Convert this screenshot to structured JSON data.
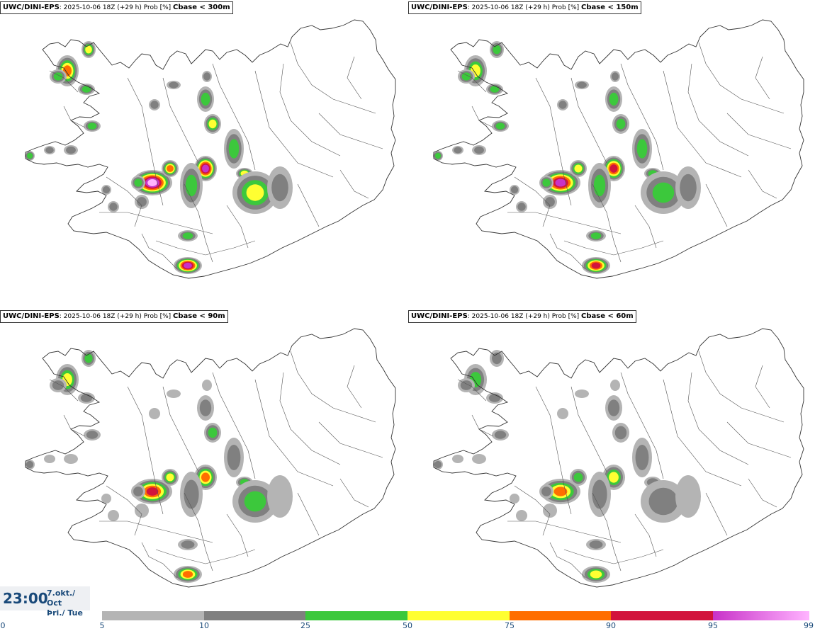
{
  "panels": [
    {
      "source": "UWC/DINI-EPS",
      "run": ": 2025-10-06 18Z (+29 h) Prob [%] ",
      "threshold": "Cbase < 300m",
      "intensity": 1.0
    },
    {
      "source": "UWC/DINI-EPS",
      "run": ": 2025-10-06 18Z (+29 h) Prob [%] ",
      "threshold": "Cbase < 150m",
      "intensity": 0.85
    },
    {
      "source": "UWC/DINI-EPS",
      "run": ": 2025-10-06 18Z (+29 h) Prob [%] ",
      "threshold": "Cbase < 90m",
      "intensity": 0.7
    },
    {
      "source": "UWC/DINI-EPS",
      "run": ": 2025-10-06 18Z (+29 h) Prob [%] ",
      "threshold": "Cbase < 60m",
      "intensity": 0.6
    }
  ],
  "valid_time": {
    "time": "23:00",
    "date_line1": "7.okt./ Oct",
    "date_line2": "Þri./ Tue"
  },
  "legend": {
    "ticks": [
      "0",
      "5",
      "10",
      "25",
      "50",
      "75",
      "90",
      "95",
      "99"
    ],
    "colors": {
      "5-10": "#b4b4b4",
      "10-25": "#808080",
      "25-50": "#3cc83c",
      "50-75": "#ffff32",
      "75-90": "#ff6e00",
      "90-95": "#d2143c",
      "95-99": "#c832c8",
      "99": "#ffb4ff"
    }
  }
}
